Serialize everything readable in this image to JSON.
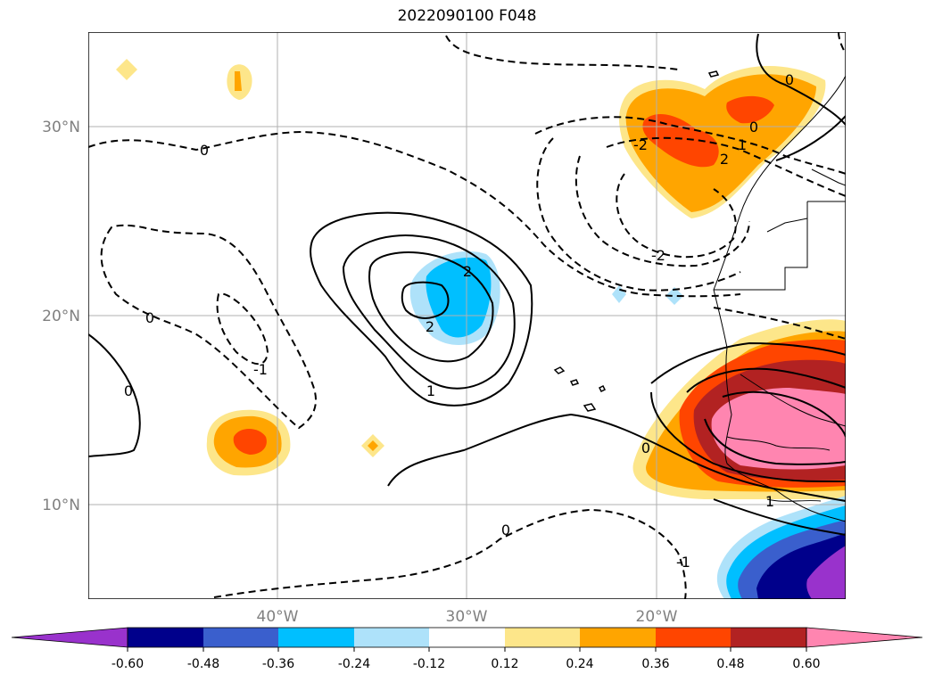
{
  "map": {
    "title": "2022090100 F048",
    "lat_ticks": [
      {
        "label": "30°N",
        "value": 30
      },
      {
        "label": "20°N",
        "value": 20
      },
      {
        "label": "10°N",
        "value": 10
      }
    ],
    "lon_ticks": [
      {
        "label": "40°W",
        "value": -40
      },
      {
        "label": "30°W",
        "value": -30
      },
      {
        "label": "20°W",
        "value": -20
      }
    ],
    "lon_range": [
      -50,
      -10
    ],
    "lat_range": [
      5,
      35
    ],
    "gridlines": true,
    "contour_labels": [
      "0",
      "0",
      "0",
      "0",
      "0",
      "0",
      "-1",
      "-1",
      "-2",
      "-2",
      "1",
      "1",
      "2",
      "2",
      "2",
      "1",
      "0"
    ]
  },
  "colorbar": {
    "levels": [
      "-0.60",
      "-0.48",
      "-0.36",
      "-0.24",
      "-0.12",
      "0.12",
      "0.24",
      "0.36",
      "0.48",
      "0.60"
    ],
    "colors": [
      "#9932cc",
      "#00008b",
      "#3a5fcd",
      "#00bfff",
      "#aee2fa",
      "#ffffff",
      "#fde68a",
      "#ffa500",
      "#ff4500",
      "#b22222",
      "#ff85b0"
    ],
    "extend": "both"
  }
}
